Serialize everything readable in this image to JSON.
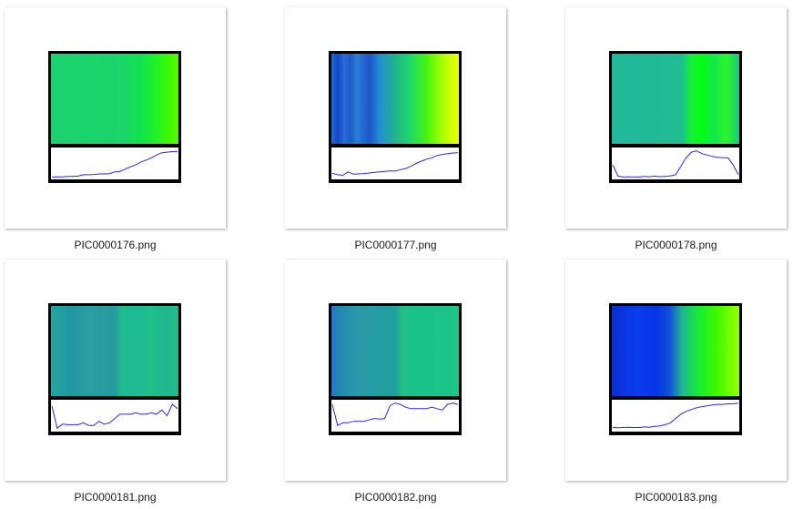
{
  "files": [
    {
      "name": "PIC0000176.png",
      "stops": [
        [
          0,
          "#1cd16f"
        ],
        [
          0.55,
          "#19d56a"
        ],
        [
          0.7,
          "#0fe24e"
        ],
        [
          0.85,
          "#27f51e"
        ],
        [
          0.92,
          "#3ff600"
        ],
        [
          1,
          "#52ff00"
        ]
      ],
      "trace": [
        0.98,
        0.97,
        0.98,
        0.96,
        0.96,
        0.95,
        0.9,
        0.9,
        0.89,
        0.87,
        0.87,
        0.86,
        0.8,
        0.78,
        0.7,
        0.62,
        0.55,
        0.45,
        0.38,
        0.3,
        0.2,
        0.12,
        0.1,
        0.08,
        0.07
      ]
    },
    {
      "name": "PIC0000177.png",
      "stops": [
        [
          0,
          "#1e6dd1"
        ],
        [
          0.05,
          "#1746c8"
        ],
        [
          0.1,
          "#2a6ad8"
        ],
        [
          0.15,
          "#1c5cc7"
        ],
        [
          0.2,
          "#2a7ed8"
        ],
        [
          0.3,
          "#1b56c9"
        ],
        [
          0.38,
          "#2390d0"
        ],
        [
          0.5,
          "#1fb48a"
        ],
        [
          0.62,
          "#1fd96a"
        ],
        [
          0.75,
          "#47f50e"
        ],
        [
          0.88,
          "#b0ff00"
        ],
        [
          1,
          "#f2ff00"
        ]
      ],
      "trace": [
        0.85,
        0.9,
        0.92,
        0.8,
        0.88,
        0.87,
        0.86,
        0.84,
        0.82,
        0.8,
        0.78,
        0.76,
        0.77,
        0.72,
        0.68,
        0.6,
        0.5,
        0.42,
        0.35,
        0.3,
        0.22,
        0.18,
        0.15,
        0.13,
        0.12
      ]
    },
    {
      "name": "PIC0000178.png",
      "stops": [
        [
          0,
          "#22b89b"
        ],
        [
          0.55,
          "#1fbd92"
        ],
        [
          0.58,
          "#14d865"
        ],
        [
          0.62,
          "#18ee3a"
        ],
        [
          0.7,
          "#00ff10"
        ],
        [
          0.8,
          "#12e84b"
        ],
        [
          0.9,
          "#2df52a"
        ],
        [
          0.97,
          "#1dd86a"
        ],
        [
          1,
          "#1fc08c"
        ]
      ],
      "trace": [
        0.55,
        0.95,
        0.98,
        0.97,
        0.98,
        0.98,
        0.96,
        0.97,
        0.95,
        0.97,
        0.96,
        0.94,
        0.9,
        0.6,
        0.3,
        0.1,
        0.05,
        0.15,
        0.2,
        0.25,
        0.28,
        0.3,
        0.3,
        0.55,
        0.9
      ]
    },
    {
      "name": "PIC0000181.png",
      "stops": [
        [
          0,
          "#27a39f"
        ],
        [
          0.15,
          "#2297a2"
        ],
        [
          0.3,
          "#2a9ea0"
        ],
        [
          0.5,
          "#269a9c"
        ],
        [
          0.55,
          "#1fbd8c"
        ],
        [
          0.65,
          "#1db995"
        ],
        [
          0.8,
          "#1fbf88"
        ],
        [
          0.9,
          "#23b68f"
        ],
        [
          1,
          "#1fbf88"
        ]
      ],
      "trace": [
        0.15,
        0.95,
        0.8,
        0.82,
        0.82,
        0.82,
        0.75,
        0.85,
        0.85,
        0.7,
        0.8,
        0.75,
        0.6,
        0.45,
        0.45,
        0.45,
        0.4,
        0.45,
        0.45,
        0.4,
        0.45,
        0.3,
        0.5,
        0.1,
        0.25
      ]
    },
    {
      "name": "PIC0000182.png",
      "stops": [
        [
          0,
          "#2a6fd0"
        ],
        [
          0.05,
          "#2487b0"
        ],
        [
          0.2,
          "#2a9aaa"
        ],
        [
          0.5,
          "#229f9e"
        ],
        [
          0.55,
          "#1fbf86"
        ],
        [
          0.7,
          "#1ac28a"
        ],
        [
          1,
          "#1ec58a"
        ]
      ],
      "trace": [
        0.1,
        0.85,
        0.75,
        0.75,
        0.7,
        0.7,
        0.7,
        0.65,
        0.6,
        0.62,
        0.6,
        0.15,
        0.05,
        0.1,
        0.2,
        0.25,
        0.25,
        0.25,
        0.25,
        0.2,
        0.25,
        0.3,
        0.1,
        0.05,
        0.1
      ]
    },
    {
      "name": "PIC0000183.png",
      "stops": [
        [
          0,
          "#0a2fd6"
        ],
        [
          0.2,
          "#0b3cee"
        ],
        [
          0.35,
          "#0535e6"
        ],
        [
          0.45,
          "#1250d8"
        ],
        [
          0.55,
          "#1fb58e"
        ],
        [
          0.68,
          "#15ec37"
        ],
        [
          0.82,
          "#3ff800"
        ],
        [
          1,
          "#9bff00"
        ]
      ],
      "trace": [
        0.92,
        0.93,
        0.92,
        0.91,
        0.92,
        0.92,
        0.9,
        0.91,
        0.88,
        0.86,
        0.82,
        0.75,
        0.6,
        0.45,
        0.35,
        0.28,
        0.22,
        0.18,
        0.15,
        0.12,
        0.1,
        0.1,
        0.08,
        0.08,
        0.06
      ]
    }
  ]
}
